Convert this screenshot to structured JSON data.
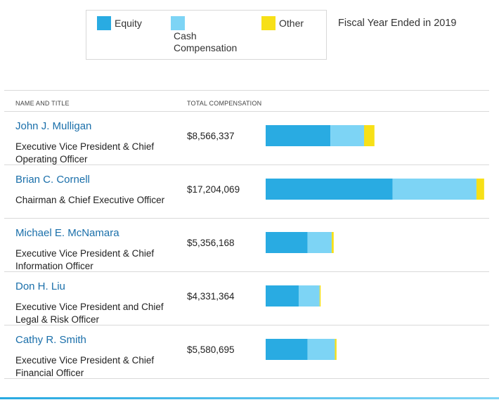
{
  "legend": {
    "items": [
      {
        "label": "Equity",
        "color": "#29abe2"
      },
      {
        "label": "Cash Compensation",
        "color": "#7dd4f5"
      },
      {
        "label": "Other",
        "color": "#f7e017"
      }
    ]
  },
  "fiscal_year": "Fiscal Year Ended in 2019",
  "table": {
    "headers": {
      "name": "NAME AND TITLE",
      "total": "TOTAL COMPENSATION"
    }
  },
  "chart_data": {
    "type": "bar",
    "orientation": "horizontal",
    "stacked": true,
    "title": "Fiscal Year Ended in 2019",
    "categories": [
      "John J. Mulligan",
      "Brian C. Cornell",
      "Michael E. McNamara",
      "Don H. Liu",
      "Cathy R. Smith"
    ],
    "category_titles": [
      "Executive Vice President & Chief Operating Officer",
      "Chairman & Chief Executive Officer",
      "Executive Vice President & Chief Information Officer",
      "Executive Vice President and Chief Legal & Risk Officer",
      "Executive Vice President & Chief Financial Officer"
    ],
    "totals": [
      8566337,
      17204069,
      5356168,
      4331364,
      5580695
    ],
    "total_labels": [
      "$8,566,337",
      "$17,204,069",
      "$5,356,168",
      "$4,331,364",
      "$5,580,695"
    ],
    "series": [
      {
        "name": "Equity",
        "values": [
          5100000,
          10000000,
          3300000,
          2600000,
          3300000
        ]
      },
      {
        "name": "Cash Compensation",
        "values": [
          2650000,
          6600000,
          1900000,
          1650000,
          2150000
        ]
      },
      {
        "name": "Other",
        "values": [
          816337,
          604069,
          156168,
          81364,
          130695
        ]
      }
    ],
    "xlim": [
      0,
      17600000
    ],
    "xlabel": "",
    "ylabel": ""
  }
}
